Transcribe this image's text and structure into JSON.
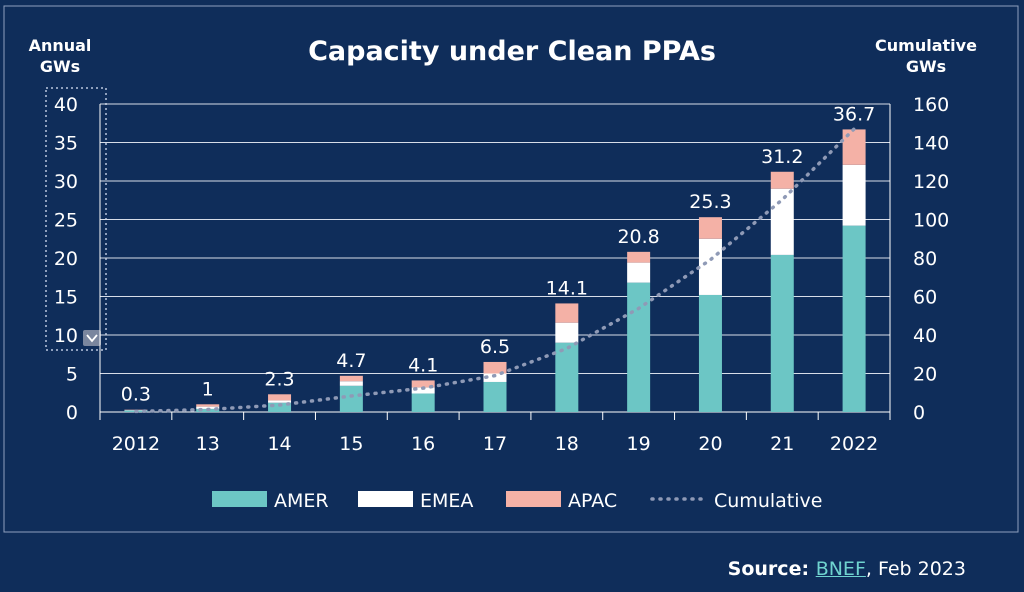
{
  "chart_data": {
    "type": "bar",
    "stacked": true,
    "title": "Capacity under Clean PPAs",
    "y_left_label": [
      "Annual",
      "GWs"
    ],
    "y_right_label": [
      "Cumulative",
      "GWs"
    ],
    "categories": [
      "2012",
      "13",
      "14",
      "15",
      "16",
      "17",
      "18",
      "19",
      "20",
      "21",
      "2022"
    ],
    "series": [
      {
        "name": "AMER",
        "values": [
          0.2,
          0.4,
          1.2,
          3.4,
          2.4,
          3.9,
          9.0,
          16.8,
          15.2,
          20.4,
          24.2
        ]
      },
      {
        "name": "EMEA",
        "values": [
          0.05,
          0.3,
          0.3,
          0.6,
          0.8,
          1.1,
          2.6,
          2.6,
          7.3,
          8.6,
          7.9
        ]
      },
      {
        "name": "APAC",
        "values": [
          0.05,
          0.3,
          0.8,
          0.7,
          0.9,
          1.5,
          2.5,
          1.4,
          2.8,
          2.2,
          4.6
        ]
      }
    ],
    "totals": [
      0.3,
      1,
      2.3,
      4.7,
      4.1,
      6.5,
      14.1,
      20.8,
      25.3,
      31.2,
      36.7
    ],
    "total_labels": [
      "0.3",
      "1",
      "2.3",
      "4.7",
      "4.1",
      "6.5",
      "14.1",
      "20.8",
      "25.3",
      "31.2",
      "36.7"
    ],
    "cumulative": {
      "name": "Cumulative",
      "values": [
        0.3,
        1.3,
        3.6,
        8.3,
        12.4,
        18.9,
        33.0,
        53.8,
        79.1,
        110.3,
        147.0
      ]
    },
    "ylim_left": [
      0,
      40
    ],
    "ylim_right": [
      0,
      160
    ],
    "yticks_left": [
      "0",
      "5",
      "10",
      "15",
      "20",
      "25",
      "30",
      "35",
      "40"
    ],
    "yticks_right": [
      "0",
      "20",
      "40",
      "60",
      "80",
      "100",
      "120",
      "140",
      "160"
    ],
    "grid": true,
    "legend_position": "bottom"
  },
  "colors": {
    "AMER": "#6cc6c5",
    "EMEA": "#ffffff",
    "APAC": "#f4b1a6",
    "cumulative": "#8f9ab6",
    "background": "#0f2d5a"
  },
  "source": {
    "prefix": "Source:",
    "link": "BNEF",
    "suffix": ", Feb 2023"
  }
}
